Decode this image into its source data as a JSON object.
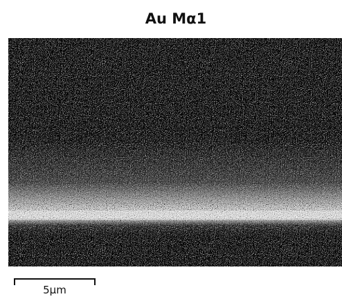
{
  "title": "Au Mα1",
  "scale_bar": {
    "label": "5μm"
  }
}
